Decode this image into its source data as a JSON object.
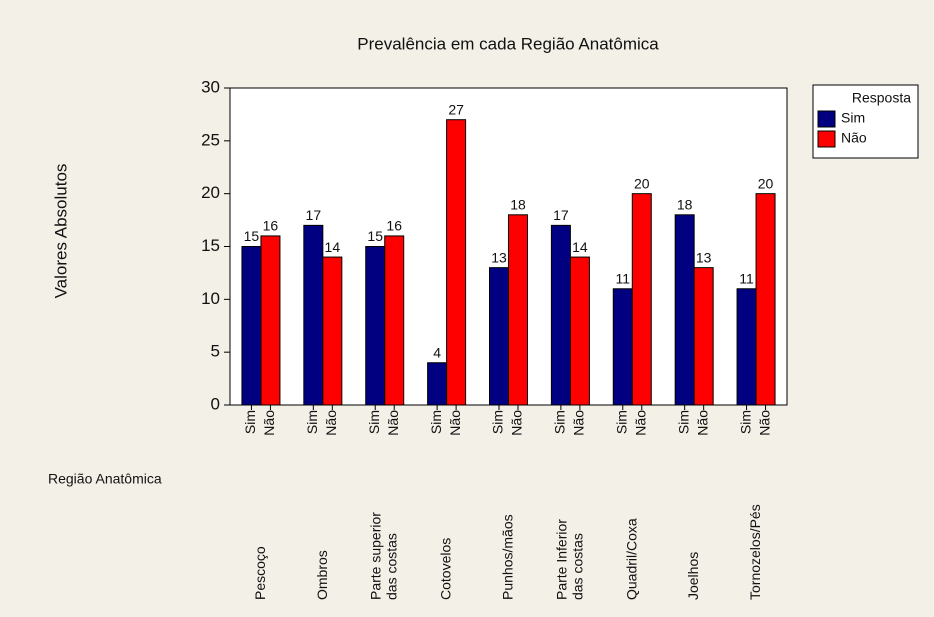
{
  "chart_data": {
    "type": "bar",
    "title": "Prevalência em cada Região Anatômica",
    "ylabel": "Valores Absolutos",
    "xlabel": "Região Anatômica",
    "legend_title": "Resposta",
    "legend": "right",
    "categories": [
      [
        "Pescoço"
      ],
      [
        "Ombros"
      ],
      [
        "Parte superior",
        "das costas"
      ],
      [
        "Cotovelos"
      ],
      [
        "Punhos/mãos"
      ],
      [
        "Parte Inferior",
        "das costas"
      ],
      [
        "Quadril/Coxa"
      ],
      [
        "Joelhos"
      ],
      [
        "Tornozelos/Pés"
      ]
    ],
    "series": [
      {
        "name": "Sim",
        "color": "#000080",
        "values": [
          15,
          17,
          15,
          4,
          13,
          17,
          11,
          18,
          11
        ]
      },
      {
        "name": "Não",
        "color": "#ff0000",
        "values": [
          16,
          14,
          16,
          27,
          18,
          14,
          20,
          13,
          20
        ]
      }
    ],
    "ylim": [
      0,
      30
    ],
    "yticks": [
      0,
      5,
      10,
      15,
      20,
      25,
      30
    ]
  }
}
